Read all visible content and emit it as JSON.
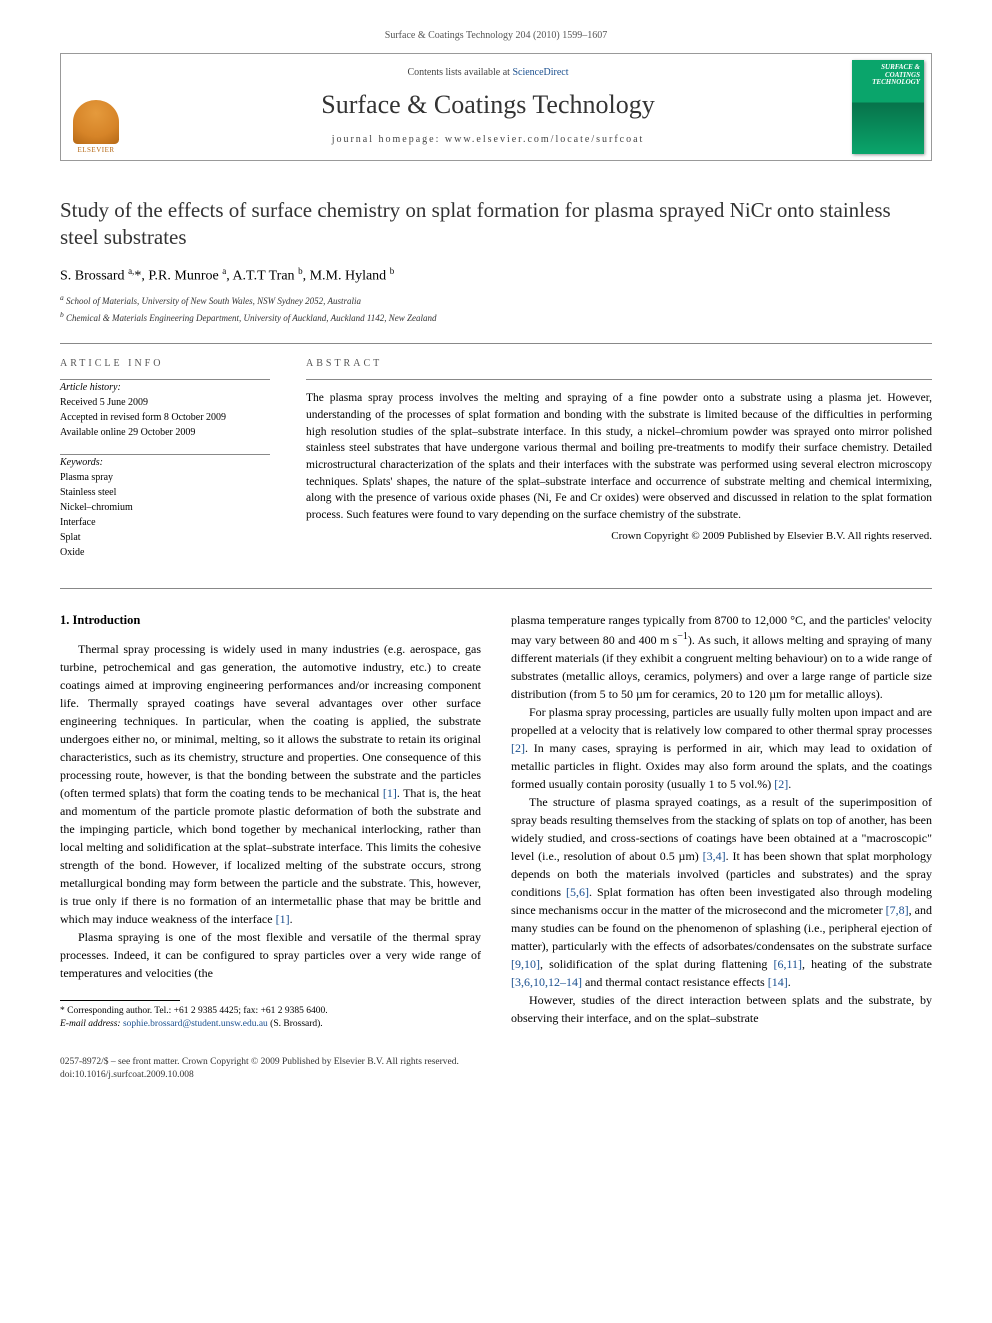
{
  "running_head": "Surface & Coatings Technology 204 (2010) 1599–1607",
  "masthead": {
    "contents_prefix": "Contents lists available at ",
    "contents_link": "ScienceDirect",
    "journal_name": "Surface & Coatings Technology",
    "homepage_label": "journal homepage: ",
    "homepage_url": "www.elsevier.com/locate/surfcoat",
    "publisher": "ELSEVIER",
    "cover_title": "SURFACE & COATINGS TECHNOLOGY"
  },
  "article": {
    "title": "Study of the effects of surface chemistry on splat formation for plasma sprayed NiCr onto stainless steel substrates",
    "authors_html": "S. Brossard <sup>a,</sup>*, P.R. Munroe <sup>a</sup>, A.T.T Tran <sup>b</sup>, M.M. Hyland <sup>b</sup>",
    "affiliations": [
      "a School of Materials, University of New South Wales, NSW Sydney 2052, Australia",
      "b Chemical & Materials Engineering Department, University of Auckland, Auckland 1142, New Zealand"
    ]
  },
  "info": {
    "label": "ARTICLE INFO",
    "history_label": "Article history:",
    "history": [
      "Received 5 June 2009",
      "Accepted in revised form 8 October 2009",
      "Available online 29 October 2009"
    ],
    "keywords_label": "Keywords:",
    "keywords": [
      "Plasma spray",
      "Stainless steel",
      "Nickel–chromium",
      "Interface",
      "Splat",
      "Oxide"
    ]
  },
  "abstract": {
    "label": "ABSTRACT",
    "text": "The plasma spray process involves the melting and spraying of a fine powder onto a substrate using a plasma jet. However, understanding of the processes of splat formation and bonding with the substrate is limited because of the difficulties in performing high resolution studies of the splat–substrate interface. In this study, a nickel–chromium powder was sprayed onto mirror polished stainless steel substrates that have undergone various thermal and boiling pre-treatments to modify their surface chemistry. Detailed microstructural characterization of the splats and their interfaces with the substrate was performed using several electron microscopy techniques. Splats' shapes, the nature of the splat–substrate interface and occurrence of substrate melting and chemical intermixing, along with the presence of various oxide phases (Ni, Fe and Cr oxides) were observed and discussed in relation to the splat formation process. Such features were found to vary depending on the surface chemistry of the substrate.",
    "copyright": "Crown Copyright © 2009 Published by Elsevier B.V. All rights reserved."
  },
  "body": {
    "heading": "1. Introduction",
    "p1": "Thermal spray processing is widely used in many industries (e.g. aerospace, gas turbine, petrochemical and gas generation, the automotive industry, etc.) to create coatings aimed at improving engineering performances and/or increasing component life. Thermally sprayed coatings have several advantages over other surface engineering techniques. In particular, when the coating is applied, the substrate undergoes either no, or minimal, melting, so it allows the substrate to retain its original characteristics, such as its chemistry, structure and properties. One consequence of this processing route, however, is that the bonding between the substrate and the particles (often termed splats) that form the coating tends to be mechanical ",
    "p1_ref": "[1]",
    "p1b": ". That is, the heat and momentum of the particle promote plastic deformation of both the substrate and the impinging particle, which bond together by mechanical interlocking, rather than local melting and solidification at the splat–substrate interface. This limits the cohesive strength of the bond. However, if localized melting of the substrate occurs, strong metallurgical bonding may form between the particle and the substrate. This, however, is true only if there is no formation of an intermetallic phase that may be brittle and which may induce weakness of the interface ",
    "p1b_ref": "[1]",
    "p1c": ".",
    "p2": "Plasma spraying is one of the most flexible and versatile of the thermal spray processes. Indeed, it can be configured to spray particles over a very wide range of temperatures and velocities (the",
    "p3a": "plasma temperature ranges typically from 8700 to 12,000 °C, and the particles' velocity may vary between 80 and 400 m s",
    "p3_sup": "−1",
    "p3b": "). As such, it allows melting and spraying of many different materials (if they exhibit a congruent melting behaviour) on to a wide range of substrates (metallic alloys, ceramics, polymers) and over a large range of particle size distribution (from 5 to 50 µm for ceramics, 20 to 120 µm for metallic alloys).",
    "p4a": "For plasma spray processing, particles are usually fully molten upon impact and are propelled at a velocity that is relatively low compared to other thermal spray processes ",
    "p4_ref1": "[2]",
    "p4b": ". In many cases, spraying is performed in air, which may lead to oxidation of metallic particles in flight. Oxides may also form around the splats, and the coatings formed usually contain porosity (usually 1 to 5 vol.%) ",
    "p4_ref2": "[2]",
    "p4c": ".",
    "p5a": "The structure of plasma sprayed coatings, as a result of the superimposition of spray beads resulting themselves from the stacking of splats on top of another, has been widely studied, and cross-sections of coatings have been obtained at a \"macroscopic\" level (i.e., resolution of about 0.5 µm) ",
    "p5_ref1": "[3,4]",
    "p5b": ". It has been shown that splat morphology depends on both the materials involved (particles and substrates) and the spray conditions ",
    "p5_ref2": "[5,6]",
    "p5c": ". Splat formation has often been investigated also through modeling since mechanisms occur in the matter of the microsecond and the micrometer ",
    "p5_ref3": "[7,8]",
    "p5d": ", and many studies can be found on the phenomenon of splashing (i.e., peripheral ejection of matter), particularly with the effects of adsorbates/condensates on the substrate surface ",
    "p5_ref4": "[9,10]",
    "p5e": ", solidification of the splat during flattening ",
    "p5_ref5": "[6,11]",
    "p5f": ", heating of the substrate ",
    "p5_ref6": "[3,6,10,12–14]",
    "p5g": " and thermal contact resistance effects ",
    "p5_ref7": "[14]",
    "p5h": ".",
    "p6": "However, studies of the direct interaction between splats and the substrate, by observing their interface, and on the splat–substrate"
  },
  "footnote": {
    "corr": "* Corresponding author. Tel.: +61 2 9385 4425; fax: +61 2 9385 6400.",
    "email_label": "E-mail address: ",
    "email": "sophie.brossard@student.unsw.edu.au",
    "email_suffix": " (S. Brossard)."
  },
  "footer": {
    "line1": "0257-8972/$ – see front matter. Crown Copyright © 2009 Published by Elsevier B.V. All rights reserved.",
    "line2": "doi:10.1016/j.surfcoat.2009.10.008"
  },
  "colors": {
    "link": "#1a4f8f",
    "elsevier_orange": "#d68428",
    "cover_green": "#0aa56b"
  }
}
